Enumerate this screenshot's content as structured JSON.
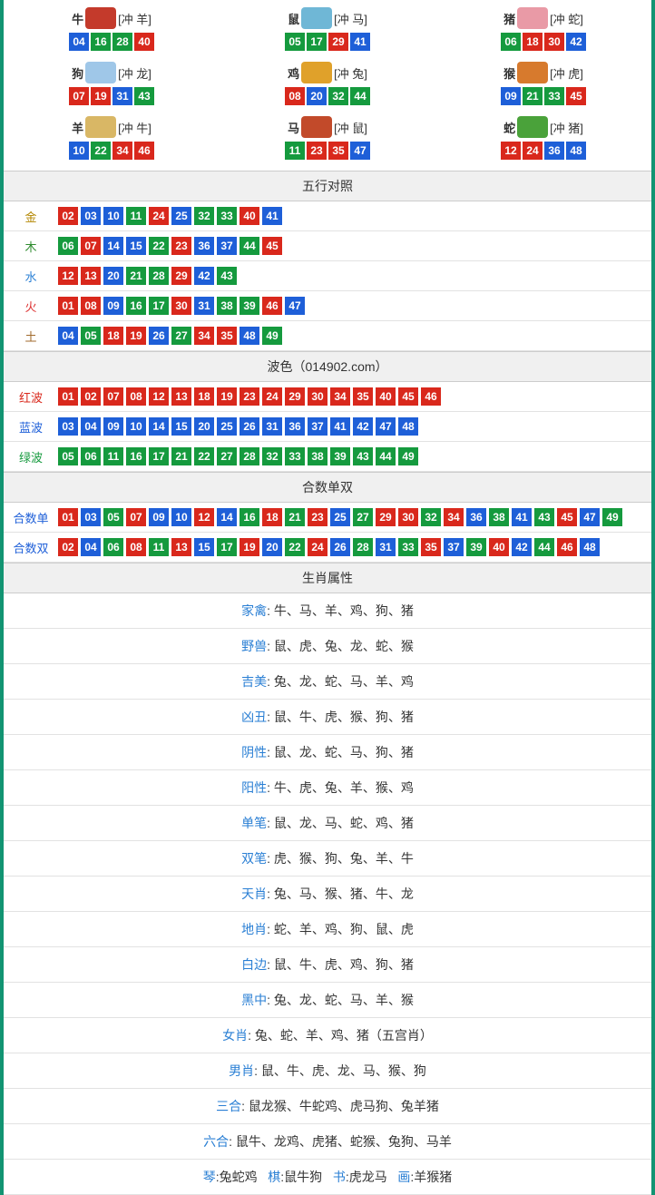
{
  "colors": {
    "red": "#d9281c",
    "green": "#159a3e",
    "blue": "#1e5fd8",
    "teal_border": "#129472",
    "head_bg": "#f0f0f0"
  },
  "ball_color_map": {
    "01": "red",
    "02": "red",
    "07": "red",
    "08": "red",
    "12": "red",
    "13": "red",
    "18": "red",
    "19": "red",
    "23": "red",
    "24": "red",
    "29": "red",
    "30": "red",
    "34": "red",
    "35": "red",
    "40": "red",
    "45": "red",
    "46": "red",
    "03": "blue",
    "04": "blue",
    "09": "blue",
    "10": "blue",
    "14": "blue",
    "15": "blue",
    "20": "blue",
    "25": "blue",
    "26": "blue",
    "31": "blue",
    "36": "blue",
    "37": "blue",
    "41": "blue",
    "42": "blue",
    "47": "blue",
    "48": "blue",
    "05": "green",
    "06": "green",
    "11": "green",
    "16": "green",
    "17": "green",
    "21": "green",
    "22": "green",
    "27": "green",
    "28": "green",
    "32": "green",
    "33": "green",
    "38": "green",
    "39": "green",
    "43": "green",
    "44": "green",
    "49": "green"
  },
  "zodiac": [
    {
      "name": "牛",
      "chong": "[冲 羊]",
      "icon_color": "#c43a2b",
      "balls": [
        "04",
        "16",
        "28",
        "40"
      ]
    },
    {
      "name": "鼠",
      "chong": "[冲 马]",
      "icon_color": "#6fb7d6",
      "balls": [
        "05",
        "17",
        "29",
        "41"
      ]
    },
    {
      "name": "猪",
      "chong": "[冲 蛇]",
      "icon_color": "#e99aa6",
      "balls": [
        "06",
        "18",
        "30",
        "42"
      ]
    },
    {
      "name": "狗",
      "chong": "[冲 龙]",
      "icon_color": "#9fc7e8",
      "balls": [
        "07",
        "19",
        "31",
        "43"
      ]
    },
    {
      "name": "鸡",
      "chong": "[冲 兔]",
      "icon_color": "#e0a12a",
      "balls": [
        "08",
        "20",
        "32",
        "44"
      ]
    },
    {
      "name": "猴",
      "chong": "[冲 虎]",
      "icon_color": "#d77a2d",
      "balls": [
        "09",
        "21",
        "33",
        "45"
      ]
    },
    {
      "name": "羊",
      "chong": "[冲 牛]",
      "icon_color": "#d9b765",
      "balls": [
        "10",
        "22",
        "34",
        "46"
      ]
    },
    {
      "name": "马",
      "chong": "[冲 鼠]",
      "icon_color": "#c24a2a",
      "balls": [
        "11",
        "23",
        "35",
        "47"
      ]
    },
    {
      "name": "蛇",
      "chong": "[冲 猪]",
      "icon_color": "#4aa23a",
      "balls": [
        "12",
        "24",
        "36",
        "48"
      ]
    }
  ],
  "wuxing": {
    "title": "五行对照",
    "rows": [
      {
        "label": "金",
        "label_class": "lbl-gold",
        "balls": [
          "02",
          "03",
          "10",
          "11",
          "24",
          "25",
          "32",
          "33",
          "40",
          "41"
        ]
      },
      {
        "label": "木",
        "label_class": "lbl-wood",
        "balls": [
          "06",
          "07",
          "14",
          "15",
          "22",
          "23",
          "36",
          "37",
          "44",
          "45"
        ]
      },
      {
        "label": "水",
        "label_class": "lbl-water",
        "balls": [
          "12",
          "13",
          "20",
          "21",
          "28",
          "29",
          "42",
          "43"
        ]
      },
      {
        "label": "火",
        "label_class": "lbl-fire",
        "balls": [
          "01",
          "08",
          "09",
          "16",
          "17",
          "30",
          "31",
          "38",
          "39",
          "46",
          "47"
        ]
      },
      {
        "label": "土",
        "label_class": "lbl-earth",
        "balls": [
          "04",
          "05",
          "18",
          "19",
          "26",
          "27",
          "34",
          "35",
          "48",
          "49"
        ]
      }
    ]
  },
  "bose": {
    "title": "波色（014902.com）",
    "rows": [
      {
        "label": "红波",
        "label_class": "lbl-red",
        "balls": [
          "01",
          "02",
          "07",
          "08",
          "12",
          "13",
          "18",
          "19",
          "23",
          "24",
          "29",
          "30",
          "34",
          "35",
          "40",
          "45",
          "46"
        ]
      },
      {
        "label": "蓝波",
        "label_class": "lbl-blue",
        "balls": [
          "03",
          "04",
          "09",
          "10",
          "14",
          "15",
          "20",
          "25",
          "26",
          "31",
          "36",
          "37",
          "41",
          "42",
          "47",
          "48"
        ]
      },
      {
        "label": "绿波",
        "label_class": "lbl-green",
        "balls": [
          "05",
          "06",
          "11",
          "16",
          "17",
          "21",
          "22",
          "27",
          "28",
          "32",
          "33",
          "38",
          "39",
          "43",
          "44",
          "49"
        ]
      }
    ]
  },
  "heshu": {
    "title": "合数单双",
    "rows": [
      {
        "label": "合数单",
        "label_class": "lbl-blue",
        "balls": [
          "01",
          "03",
          "05",
          "07",
          "09",
          "10",
          "12",
          "14",
          "16",
          "18",
          "21",
          "23",
          "25",
          "27",
          "29",
          "30",
          "32",
          "34",
          "36",
          "38",
          "41",
          "43",
          "45",
          "47",
          "49"
        ]
      },
      {
        "label": "合数双",
        "label_class": "lbl-blue",
        "balls": [
          "02",
          "04",
          "06",
          "08",
          "11",
          "13",
          "15",
          "17",
          "19",
          "20",
          "22",
          "24",
          "26",
          "28",
          "31",
          "33",
          "35",
          "37",
          "39",
          "40",
          "42",
          "44",
          "46",
          "48"
        ]
      }
    ]
  },
  "attrs": {
    "title": "生肖属性",
    "rows": [
      {
        "key": "家禽",
        "val": "牛、马、羊、鸡、狗、猪"
      },
      {
        "key": "野兽",
        "val": "鼠、虎、兔、龙、蛇、猴"
      },
      {
        "key": "吉美",
        "val": "兔、龙、蛇、马、羊、鸡"
      },
      {
        "key": "凶丑",
        "val": "鼠、牛、虎、猴、狗、猪"
      },
      {
        "key": "阴性",
        "val": "鼠、龙、蛇、马、狗、猪"
      },
      {
        "key": "阳性",
        "val": "牛、虎、兔、羊、猴、鸡"
      },
      {
        "key": "单笔",
        "val": "鼠、龙、马、蛇、鸡、猪"
      },
      {
        "key": "双笔",
        "val": "虎、猴、狗、兔、羊、牛"
      },
      {
        "key": "天肖",
        "val": "兔、马、猴、猪、牛、龙"
      },
      {
        "key": "地肖",
        "val": "蛇、羊、鸡、狗、鼠、虎"
      },
      {
        "key": "白边",
        "val": "鼠、牛、虎、鸡、狗、猪"
      },
      {
        "key": "黑中",
        "val": "兔、龙、蛇、马、羊、猴"
      },
      {
        "key": "女肖",
        "val": "兔、蛇、羊、鸡、猪（五宫肖）"
      },
      {
        "key": "男肖",
        "val": "鼠、牛、虎、龙、马、猴、狗"
      },
      {
        "key": "三合",
        "val": "鼠龙猴、牛蛇鸡、虎马狗、兔羊猪"
      },
      {
        "key": "六合",
        "val": "鼠牛、龙鸡、虎猪、蛇猴、兔狗、马羊"
      }
    ],
    "footer_parts": [
      {
        "key": "琴",
        "val": "兔蛇鸡"
      },
      {
        "key": "棋",
        "val": "鼠牛狗"
      },
      {
        "key": "书",
        "val": "虎龙马"
      },
      {
        "key": "画",
        "val": "羊猴猪"
      }
    ]
  }
}
